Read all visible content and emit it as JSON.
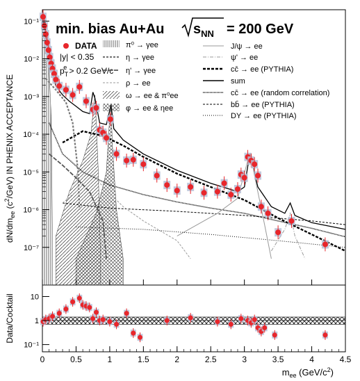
{
  "chart_data": [
    {
      "type": "scatter",
      "panel": "main",
      "title": "min. bias Au+Au √sNN = 200 GeV",
      "title_text": "min. bias Au+Au",
      "title_energy": "= 200 GeV",
      "xlabel": "m_ee (GeV/c²)",
      "ylabel": "dN/dm_ee (c²/GeV) IN PHENIX ACCEPTANCE",
      "xlim": [
        0,
        4.5
      ],
      "ylim": [
        1e-08,
        0.2
      ],
      "yscale": "log",
      "x_ticks": [
        "0",
        "0.5",
        "1",
        "1.5",
        "2",
        "2.5",
        "3",
        "3.5",
        "4",
        "4.5"
      ],
      "y_ticks": [
        "10⁻⁷",
        "10⁻⁶",
        "10⁻⁵",
        "10⁻⁴",
        "10⁻³",
        "10⁻²",
        "10⁻¹"
      ],
      "cuts": [
        "|y| < 0.35",
        "p_T^e > 0.2 GeV/c"
      ],
      "legend": [
        {
          "label": "DATA",
          "style": "marker",
          "color": "#e8262b"
        },
        {
          "label": "π⁰ → γee",
          "style": "hatch-vertical"
        },
        {
          "label": "η → γee",
          "style": "dash-thick"
        },
        {
          "label": "η' → γee",
          "style": "dash-bold"
        },
        {
          "label": "ρ → ee",
          "style": "dash-light"
        },
        {
          "label": "ω → ee & π⁰ee",
          "style": "hatch-diag"
        },
        {
          "label": "φ → ee & ηee",
          "style": "hatch-cross"
        },
        {
          "label": "J/ψ → ee",
          "style": "solid-gray"
        },
        {
          "label": "ψ' → ee",
          "style": "dashdot-gray"
        },
        {
          "label": "cc̄ → ee (PYTHIA)",
          "style": "dash-black-thick"
        },
        {
          "label": "sum",
          "style": "solid-black"
        },
        {
          "label": "cc̄ → ee (random correlation)",
          "style": "dotted-dense"
        },
        {
          "label": "bb̄ → ee (PYTHIA)",
          "style": "dash-fine"
        },
        {
          "label": "DY → ee (PYTHIA)",
          "style": "dotted-fine"
        }
      ],
      "data_points": [
        {
          "x": 0.01,
          "y": 0.13
        },
        {
          "x": 0.03,
          "y": 0.075
        },
        {
          "x": 0.05,
          "y": 0.045
        },
        {
          "x": 0.07,
          "y": 0.027
        },
        {
          "x": 0.09,
          "y": 0.017
        },
        {
          "x": 0.11,
          "y": 0.011
        },
        {
          "x": 0.13,
          "y": 0.0075
        },
        {
          "x": 0.15,
          "y": 0.0055
        },
        {
          "x": 0.175,
          "y": 0.004
        },
        {
          "x": 0.2,
          "y": 0.0028
        },
        {
          "x": 0.25,
          "y": 0.0019
        },
        {
          "x": 0.35,
          "y": 0.0015
        },
        {
          "x": 0.45,
          "y": 0.0011
        },
        {
          "x": 0.55,
          "y": 0.0018
        },
        {
          "x": 0.65,
          "y": 0.00075
        },
        {
          "x": 0.75,
          "y": 0.00045
        },
        {
          "x": 0.8,
          "y": 0.0005
        },
        {
          "x": 0.85,
          "y": 0.00013
        },
        {
          "x": 0.9,
          "y": 0.00011
        },
        {
          "x": 0.95,
          "y": 8e-05
        },
        {
          "x": 1.01,
          "y": 0.00025
        },
        {
          "x": 1.1,
          "y": 3e-05
        },
        {
          "x": 1.25,
          "y": 2e-05
        },
        {
          "x": 1.35,
          "y": 2.1e-05
        },
        {
          "x": 1.5,
          "y": 1.6e-05
        },
        {
          "x": 1.7,
          "y": 8e-06
        },
        {
          "x": 1.85,
          "y": 4.5e-06
        },
        {
          "x": 2.0,
          "y": 3.2e-06
        },
        {
          "x": 2.2,
          "y": 4e-06
        },
        {
          "x": 2.4,
          "y": 2.8e-06
        },
        {
          "x": 2.6,
          "y": 3e-06
        },
        {
          "x": 2.7,
          "y": 5e-06
        },
        {
          "x": 2.8,
          "y": 2.5e-06
        },
        {
          "x": 2.9,
          "y": 3.5e-06
        },
        {
          "x": 2.95,
          "y": 8.5e-06
        },
        {
          "x": 3.0,
          "y": 7e-06
        },
        {
          "x": 3.05,
          "y": 2.5e-05
        },
        {
          "x": 3.1,
          "y": 2e-05
        },
        {
          "x": 3.15,
          "y": 1.6e-05
        },
        {
          "x": 3.2,
          "y": 8e-06
        },
        {
          "x": 3.25,
          "y": 1.2e-06
        },
        {
          "x": 3.35,
          "y": 8e-07
        },
        {
          "x": 3.5,
          "y": 2.5e-07
        },
        {
          "x": 3.7,
          "y": 5e-07
        },
        {
          "x": 4.2,
          "y": 1.2e-07
        }
      ],
      "curves": {
        "sum": [
          [
            0.0,
            0.12
          ],
          [
            0.05,
            0.05
          ],
          [
            0.1,
            0.013
          ],
          [
            0.15,
            0.004
          ],
          [
            0.2,
            0.0019
          ],
          [
            0.3,
            0.0011
          ],
          [
            0.4,
            0.00075
          ],
          [
            0.5,
            0.00055
          ],
          [
            0.6,
            0.0004
          ],
          [
            0.7,
            0.00035
          ],
          [
            0.75,
            0.0013
          ],
          [
            0.78,
            0.0009
          ],
          [
            0.85,
            0.0002
          ],
          [
            0.95,
            0.00018
          ],
          [
            1.02,
            0.0006
          ],
          [
            1.06,
            0.00014
          ],
          [
            1.2,
            7e-05
          ],
          [
            1.5,
            3e-05
          ],
          [
            2.0,
            1.1e-05
          ],
          [
            2.5,
            5e-06
          ],
          [
            2.9,
            3e-06
          ],
          [
            3.0,
            4e-06
          ],
          [
            3.08,
            3e-05
          ],
          [
            3.12,
            1.6e-05
          ],
          [
            3.2,
            4e-06
          ],
          [
            3.4,
            1.2e-06
          ],
          [
            3.6,
            8e-07
          ],
          [
            3.68,
            1.5e-06
          ],
          [
            3.75,
            7e-07
          ],
          [
            4.0,
            4.5e-07
          ],
          [
            4.5,
            3e-07
          ]
        ],
        "ccbar_pythia": [
          [
            0.3,
            6e-05
          ],
          [
            0.6,
            0.00012
          ],
          [
            0.9,
            9e-05
          ],
          [
            1.2,
            5e-05
          ],
          [
            1.5,
            2.5e-05
          ],
          [
            2.0,
            9e-06
          ],
          [
            2.5,
            4e-06
          ],
          [
            3.0,
            1.8e-06
          ],
          [
            3.5,
            6e-07
          ],
          [
            4.0,
            2.2e-07
          ],
          [
            4.5,
            8e-08
          ]
        ],
        "ccbar_random": [
          [
            0.1,
            0.0002
          ],
          [
            0.3,
            3e-05
          ],
          [
            0.6,
            1e-05
          ],
          [
            1.0,
            4.5e-06
          ],
          [
            1.5,
            2.5e-06
          ],
          [
            2.0,
            1.6e-06
          ],
          [
            2.5,
            1.1e-06
          ],
          [
            3.0,
            8e-07
          ],
          [
            3.5,
            5e-07
          ],
          [
            4.0,
            3.2e-07
          ],
          [
            4.5,
            1.9e-07
          ]
        ],
        "bbbar_pythia": [
          [
            0.3,
            1.5e-06
          ],
          [
            1.0,
            1.1e-06
          ],
          [
            2.0,
            9e-07
          ],
          [
            3.0,
            7e-07
          ],
          [
            4.0,
            5e-07
          ],
          [
            4.5,
            4e-07
          ]
        ],
        "dy_pythia": [
          [
            0.5,
            3.5e-07
          ],
          [
            1.5,
            3e-07
          ],
          [
            2.5,
            2.2e-07
          ],
          [
            3.5,
            1.5e-07
          ],
          [
            4.5,
            1e-07
          ]
        ],
        "eta": [
          [
            0.05,
            0.003
          ],
          [
            0.2,
            0.0015
          ],
          [
            0.35,
            0.0007
          ],
          [
            0.45,
            0.0002
          ],
          [
            0.53,
            1e-05
          ],
          [
            0.55,
            1e-06
          ]
        ],
        "eta_prime": [
          [
            0.1,
            3e-05
          ],
          [
            0.3,
            1.5e-05
          ],
          [
            0.5,
            7e-06
          ],
          [
            0.7,
            3e-06
          ],
          [
            0.9,
            5e-07
          ],
          [
            0.95,
            5e-08
          ]
        ],
        "rho": [
          [
            0.3,
            1.5e-06
          ],
          [
            0.5,
            3e-06
          ],
          [
            0.7,
            7e-06
          ],
          [
            0.77,
            8e-06
          ],
          [
            0.9,
            4e-06
          ],
          [
            1.2,
            1.2e-06
          ],
          [
            1.5,
            5e-07
          ],
          [
            2.0,
            1.5e-07
          ],
          [
            2.2,
            5e-08
          ]
        ],
        "j_psi": [
          [
            2.0,
            2e-07
          ],
          [
            2.6,
            8e-07
          ],
          [
            2.9,
            2e-06
          ],
          [
            3.05,
            2e-05
          ],
          [
            3.1,
            3e-05
          ],
          [
            3.15,
            8e-06
          ],
          [
            3.3,
            4e-07
          ],
          [
            3.4,
            5e-08
          ]
        ],
        "psi_prime": [
          [
            3.4,
            8e-08
          ],
          [
            3.6,
            3e-07
          ],
          [
            3.68,
            8e-07
          ],
          [
            3.75,
            2e-07
          ],
          [
            3.9,
            5e-08
          ]
        ]
      }
    },
    {
      "type": "scatter",
      "panel": "ratio",
      "xlabel": "m_ee (GeV/c²)",
      "ylabel": "Data/Cocktail",
      "xlim": [
        0,
        4.5
      ],
      "ylim": [
        0.05,
        30
      ],
      "yscale": "log",
      "y_ticks": [
        "10⁻¹",
        "1",
        "10"
      ],
      "band": {
        "low": 0.7,
        "high": 1.4
      },
      "values": [
        {
          "x": 0.01,
          "y": 0.9
        },
        {
          "x": 0.05,
          "y": 1.1
        },
        {
          "x": 0.1,
          "y": 1.2
        },
        {
          "x": 0.15,
          "y": 1.5
        },
        {
          "x": 0.25,
          "y": 2.0
        },
        {
          "x": 0.35,
          "y": 3.0
        },
        {
          "x": 0.45,
          "y": 6.0
        },
        {
          "x": 0.55,
          "y": 8.5
        },
        {
          "x": 0.6,
          "y": 4.5
        },
        {
          "x": 0.65,
          "y": 4.0
        },
        {
          "x": 0.7,
          "y": 3.5
        },
        {
          "x": 0.75,
          "y": 1.2
        },
        {
          "x": 0.8,
          "y": 2.2
        },
        {
          "x": 0.85,
          "y": 1.0
        },
        {
          "x": 0.9,
          "y": 1.1
        },
        {
          "x": 1.0,
          "y": 0.9
        },
        {
          "x": 1.1,
          "y": 0.7
        },
        {
          "x": 1.25,
          "y": 2.0
        },
        {
          "x": 1.35,
          "y": 0.3
        },
        {
          "x": 1.45,
          "y": 0.2
        },
        {
          "x": 1.85,
          "y": 1.0
        },
        {
          "x": 2.2,
          "y": 1.3
        },
        {
          "x": 2.6,
          "y": 0.9
        },
        {
          "x": 2.8,
          "y": 0.7
        },
        {
          "x": 2.95,
          "y": 1.2
        },
        {
          "x": 3.05,
          "y": 1.0
        },
        {
          "x": 3.1,
          "y": 0.8
        },
        {
          "x": 3.15,
          "y": 1.1
        },
        {
          "x": 3.2,
          "y": 0.5
        },
        {
          "x": 3.25,
          "y": 0.35
        },
        {
          "x": 3.3,
          "y": 0.5
        },
        {
          "x": 3.45,
          "y": 0.25
        },
        {
          "x": 4.2,
          "y": 0.25
        }
      ]
    }
  ]
}
